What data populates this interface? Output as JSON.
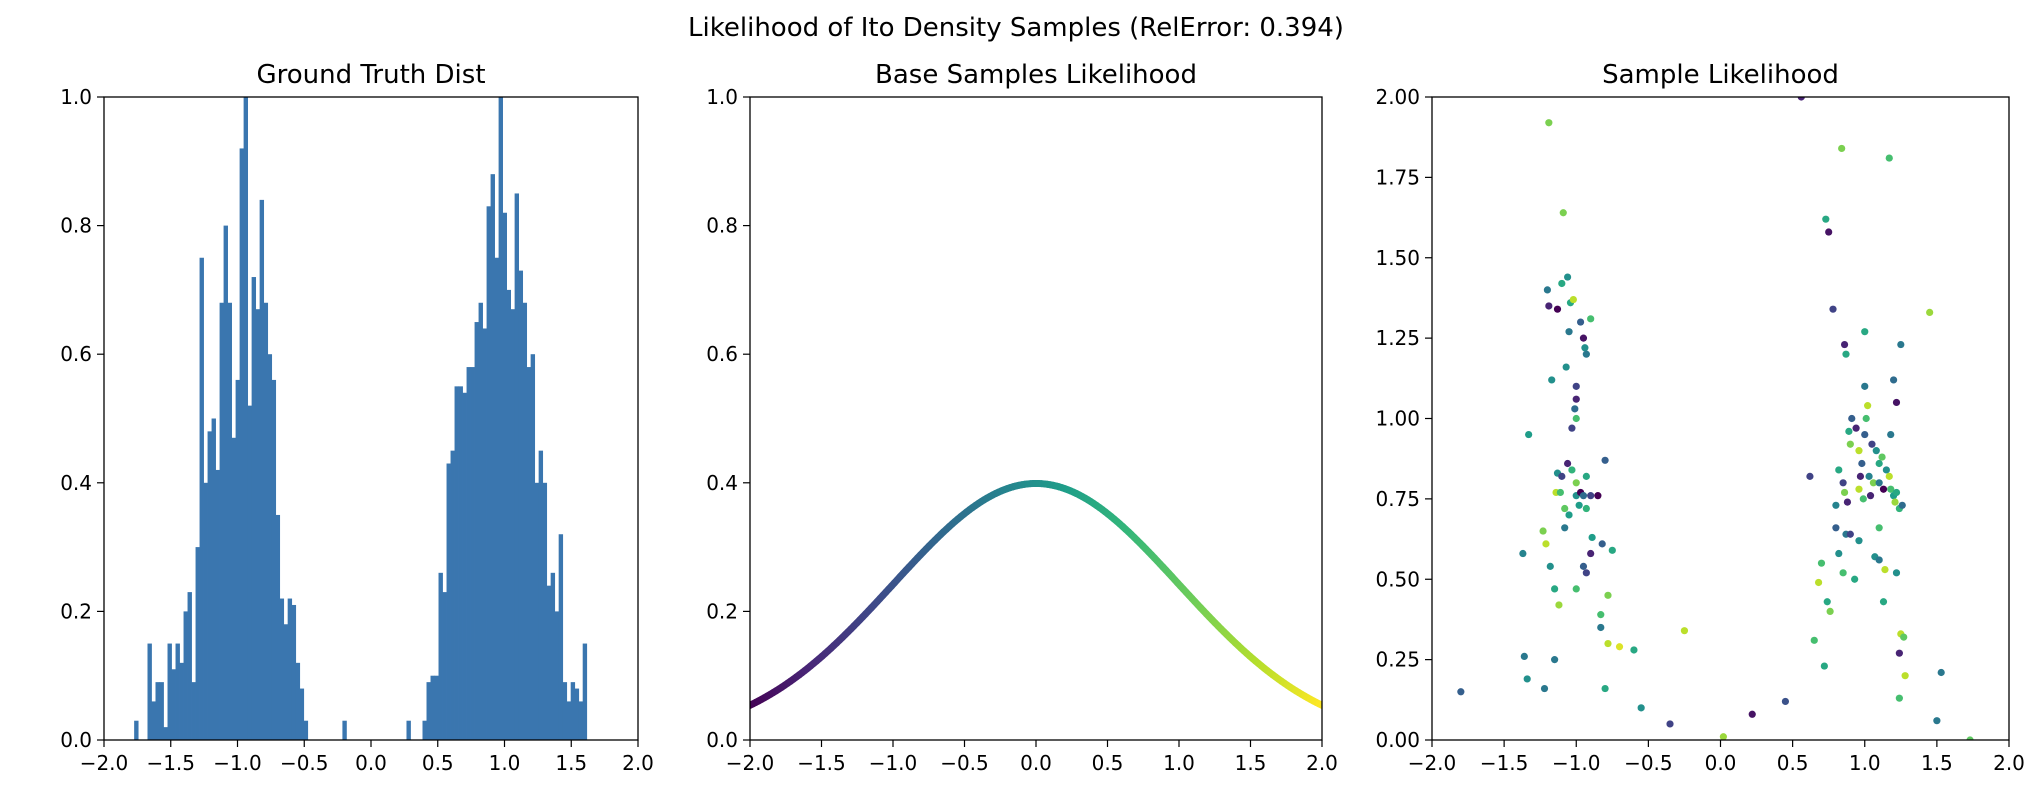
{
  "figure": {
    "suptitle": "Likelihood of Ito Density Samples (RelError: 0.394)"
  },
  "chart_data": [
    {
      "type": "bar",
      "title": "Ground Truth Dist",
      "xlabel": "",
      "ylabel": "",
      "xlim": [
        -2.0,
        2.0
      ],
      "ylim": [
        0.0,
        1.0
      ],
      "xticks": [
        "−2.0",
        "−1.5",
        "−1.0",
        "−0.5",
        "0.0",
        "0.5",
        "1.0",
        "1.5",
        "2.0"
      ],
      "yticks": [
        "0.0",
        "0.2",
        "0.4",
        "0.6",
        "0.8",
        "1.0"
      ],
      "grid": false,
      "color": "#3a76af",
      "bin_width": 0.0284,
      "bins": [
        [
          -1.76,
          0.03
        ],
        [
          -1.66,
          0.15
        ],
        [
          -1.63,
          0.06
        ],
        [
          -1.6,
          0.09
        ],
        [
          -1.57,
          0.09
        ],
        [
          -1.54,
          0.02
        ],
        [
          -1.51,
          0.15
        ],
        [
          -1.48,
          0.11
        ],
        [
          -1.45,
          0.15
        ],
        [
          -1.42,
          0.12
        ],
        [
          -1.39,
          0.2
        ],
        [
          -1.36,
          0.23
        ],
        [
          -1.33,
          0.09
        ],
        [
          -1.3,
          0.3
        ],
        [
          -1.27,
          0.75
        ],
        [
          -1.24,
          0.4
        ],
        [
          -1.21,
          0.48
        ],
        [
          -1.18,
          0.5
        ],
        [
          -1.15,
          0.42
        ],
        [
          -1.12,
          0.68
        ],
        [
          -1.09,
          0.8
        ],
        [
          -1.06,
          0.68
        ],
        [
          -1.03,
          0.47
        ],
        [
          -1.0,
          0.56
        ],
        [
          -0.97,
          0.92
        ],
        [
          -0.94,
          1.0
        ],
        [
          -0.91,
          0.52
        ],
        [
          -0.88,
          0.72
        ],
        [
          -0.85,
          0.67
        ],
        [
          -0.82,
          0.84
        ],
        [
          -0.79,
          0.68
        ],
        [
          -0.76,
          0.6
        ],
        [
          -0.73,
          0.56
        ],
        [
          -0.7,
          0.35
        ],
        [
          -0.67,
          0.22
        ],
        [
          -0.64,
          0.18
        ],
        [
          -0.61,
          0.22
        ],
        [
          -0.58,
          0.21
        ],
        [
          -0.55,
          0.12
        ],
        [
          -0.52,
          0.08
        ],
        [
          -0.49,
          0.03
        ],
        [
          -0.2,
          0.03
        ],
        [
          0.28,
          0.03
        ],
        [
          0.4,
          0.03
        ],
        [
          0.43,
          0.09
        ],
        [
          0.46,
          0.1
        ],
        [
          0.49,
          0.1
        ],
        [
          0.52,
          0.26
        ],
        [
          0.55,
          0.23
        ],
        [
          0.58,
          0.43
        ],
        [
          0.61,
          0.45
        ],
        [
          0.64,
          0.55
        ],
        [
          0.67,
          0.55
        ],
        [
          0.7,
          0.54
        ],
        [
          0.73,
          0.58
        ],
        [
          0.76,
          0.58
        ],
        [
          0.79,
          0.65
        ],
        [
          0.82,
          0.68
        ],
        [
          0.85,
          0.64
        ],
        [
          0.88,
          0.83
        ],
        [
          0.91,
          0.88
        ],
        [
          0.94,
          0.75
        ],
        [
          0.97,
          1.0
        ],
        [
          1.0,
          0.82
        ],
        [
          1.03,
          0.7
        ],
        [
          1.06,
          0.67
        ],
        [
          1.09,
          0.85
        ],
        [
          1.12,
          0.73
        ],
        [
          1.15,
          0.68
        ],
        [
          1.18,
          0.58
        ],
        [
          1.21,
          0.6
        ],
        [
          1.24,
          0.4
        ],
        [
          1.27,
          0.45
        ],
        [
          1.3,
          0.4
        ],
        [
          1.33,
          0.24
        ],
        [
          1.36,
          0.26
        ],
        [
          1.39,
          0.2
        ],
        [
          1.42,
          0.32
        ],
        [
          1.45,
          0.09
        ],
        [
          1.48,
          0.06
        ],
        [
          1.51,
          0.09
        ],
        [
          1.54,
          0.08
        ],
        [
          1.57,
          0.06
        ],
        [
          1.6,
          0.15
        ]
      ]
    },
    {
      "type": "line",
      "title": "Base Samples Likelihood",
      "xlabel": "",
      "ylabel": "",
      "xlim": [
        -2.0,
        2.0
      ],
      "ylim": [
        0.0,
        1.0
      ],
      "xticks": [
        "−2.0",
        "−1.5",
        "−1.0",
        "−0.5",
        "0.0",
        "0.5",
        "1.0",
        "1.5",
        "2.0"
      ],
      "yticks": [
        "0.0",
        "0.2",
        "0.4",
        "0.6",
        "0.8",
        "1.0"
      ],
      "grid": false,
      "curve": "standard normal pdf",
      "x": [
        -2.0,
        -1.75,
        -1.5,
        -1.25,
        -1.0,
        -0.75,
        -0.5,
        -0.25,
        0.0,
        0.25,
        0.5,
        0.75,
        1.0,
        1.25,
        1.5,
        1.75,
        2.0
      ],
      "y": [
        0.054,
        0.086,
        0.13,
        0.183,
        0.242,
        0.301,
        0.352,
        0.387,
        0.399,
        0.387,
        0.352,
        0.301,
        0.242,
        0.183,
        0.13,
        0.086,
        0.054
      ],
      "colormap": "viridis"
    },
    {
      "type": "scatter",
      "title": "Sample Likelihood",
      "xlabel": "",
      "ylabel": "",
      "xlim": [
        -2.0,
        2.0
      ],
      "ylim": [
        0.0,
        2.0
      ],
      "xticks": [
        "−2.0",
        "−1.5",
        "−1.0",
        "−0.5",
        "0.0",
        "0.5",
        "1.0",
        "1.5",
        "2.0"
      ],
      "yticks": [
        "0.00",
        "0.25",
        "0.50",
        "0.75",
        "1.00",
        "1.25",
        "1.50",
        "1.75",
        "2.00"
      ],
      "grid": false,
      "colormap": "viridis",
      "points": [
        [
          -1.8,
          0.15,
          0.3
        ],
        [
          -1.36,
          0.26,
          0.4
        ],
        [
          -1.34,
          0.19,
          0.5
        ],
        [
          -1.37,
          0.58,
          0.45
        ],
        [
          -1.33,
          0.95,
          0.55
        ],
        [
          -1.19,
          1.92,
          0.8
        ],
        [
          -1.2,
          1.4,
          0.4
        ],
        [
          -1.17,
          1.12,
          0.5
        ],
        [
          -1.19,
          1.35,
          0.1
        ],
        [
          -1.13,
          1.34,
          0.0
        ],
        [
          -1.1,
          1.42,
          0.6
        ],
        [
          -1.06,
          1.44,
          0.5
        ],
        [
          -1.04,
          1.36,
          0.6
        ],
        [
          -1.02,
          1.37,
          0.9
        ],
        [
          -1.05,
          1.27,
          0.4
        ],
        [
          -0.97,
          1.3,
          0.3
        ],
        [
          -0.9,
          1.31,
          0.7
        ],
        [
          -0.95,
          1.25,
          0.05
        ],
        [
          -0.94,
          1.22,
          0.5
        ],
        [
          -0.93,
          1.2,
          0.4
        ],
        [
          -1.0,
          1.1,
          0.2
        ],
        [
          -1.0,
          1.06,
          0.1
        ],
        [
          -1.01,
          1.03,
          0.35
        ],
        [
          -1.0,
          1.0,
          0.7
        ],
        [
          -1.03,
          0.97,
          0.2
        ],
        [
          -1.07,
          1.16,
          0.5
        ],
        [
          -1.09,
          1.64,
          0.8
        ],
        [
          -1.13,
          0.83,
          0.5
        ],
        [
          -1.1,
          0.82,
          0.2
        ],
        [
          -1.06,
          0.86,
          0.1
        ],
        [
          -1.03,
          0.84,
          0.65
        ],
        [
          -1.14,
          0.77,
          0.9
        ],
        [
          -1.11,
          0.77,
          0.7
        ],
        [
          -1.08,
          0.72,
          0.75
        ],
        [
          -1.05,
          0.7,
          0.55
        ],
        [
          -1.08,
          0.66,
          0.4
        ],
        [
          -1.0,
          0.8,
          0.8
        ],
        [
          -1.0,
          0.76,
          0.5
        ],
        [
          -0.97,
          0.77,
          0.0
        ],
        [
          -0.95,
          0.76,
          0.35
        ],
        [
          -0.98,
          0.73,
          0.55
        ],
        [
          -0.93,
          0.72,
          0.65
        ],
        [
          -0.9,
          0.76,
          0.2
        ],
        [
          -0.85,
          0.76,
          0.0
        ],
        [
          -0.8,
          0.87,
          0.3
        ],
        [
          -0.93,
          0.82,
          0.6
        ],
        [
          -1.23,
          0.65,
          0.8
        ],
        [
          -1.21,
          0.61,
          0.9
        ],
        [
          -1.18,
          0.54,
          0.5
        ],
        [
          -1.15,
          0.47,
          0.6
        ],
        [
          -1.12,
          0.42,
          0.85
        ],
        [
          -1.22,
          0.16,
          0.4
        ],
        [
          -1.15,
          0.25,
          0.4
        ],
        [
          -1.0,
          0.47,
          0.7
        ],
        [
          -0.95,
          0.54,
          0.3
        ],
        [
          -0.93,
          0.52,
          0.2
        ],
        [
          -0.9,
          0.58,
          0.1
        ],
        [
          -0.89,
          0.63,
          0.55
        ],
        [
          -0.82,
          0.61,
          0.3
        ],
        [
          -0.75,
          0.59,
          0.6
        ],
        [
          -0.78,
          0.45,
          0.8
        ],
        [
          -0.83,
          0.39,
          0.7
        ],
        [
          -0.83,
          0.35,
          0.4
        ],
        [
          -0.78,
          0.3,
          0.9
        ],
        [
          -0.8,
          0.16,
          0.6
        ],
        [
          -0.7,
          0.29,
          0.95
        ],
        [
          -0.6,
          0.28,
          0.6
        ],
        [
          -0.55,
          0.1,
          0.5
        ],
        [
          -0.35,
          0.05,
          0.2
        ],
        [
          -0.25,
          0.34,
          0.9
        ],
        [
          0.02,
          0.01,
          0.85
        ],
        [
          0.22,
          0.08,
          0.05
        ],
        [
          0.45,
          0.12,
          0.25
        ],
        [
          0.56,
          2.0,
          0.1
        ],
        [
          0.62,
          0.82,
          0.2
        ],
        [
          0.65,
          0.31,
          0.7
        ],
        [
          0.68,
          0.49,
          0.9
        ],
        [
          0.7,
          0.55,
          0.7
        ],
        [
          0.72,
          0.23,
          0.6
        ],
        [
          0.73,
          1.62,
          0.6
        ],
        [
          0.75,
          1.58,
          0.05
        ],
        [
          0.78,
          1.34,
          0.2
        ],
        [
          0.74,
          0.43,
          0.6
        ],
        [
          0.76,
          0.4,
          0.8
        ],
        [
          0.8,
          0.66,
          0.3
        ],
        [
          0.8,
          0.73,
          0.45
        ],
        [
          0.82,
          0.84,
          0.6
        ],
        [
          0.85,
          0.8,
          0.2
        ],
        [
          0.86,
          0.77,
          0.8
        ],
        [
          0.88,
          0.74,
          0.1
        ],
        [
          0.82,
          0.58,
          0.5
        ],
        [
          0.85,
          0.52,
          0.7
        ],
        [
          0.87,
          0.64,
          0.4
        ],
        [
          0.9,
          0.64,
          0.2
        ],
        [
          0.84,
          1.84,
          0.8
        ],
        [
          0.86,
          1.23,
          0.1
        ],
        [
          0.87,
          1.2,
          0.6
        ],
        [
          0.91,
          1.0,
          0.3
        ],
        [
          0.89,
          0.96,
          0.6
        ],
        [
          0.94,
          0.97,
          0.1
        ],
        [
          0.9,
          0.92,
          0.8
        ],
        [
          0.96,
          0.9,
          0.9
        ],
        [
          0.98,
          0.86,
          0.3
        ],
        [
          0.97,
          0.82,
          0.1
        ],
        [
          0.96,
          0.78,
          0.9
        ],
        [
          0.99,
          0.75,
          0.7
        ],
        [
          1.0,
          0.95,
          0.3
        ],
        [
          1.01,
          1.0,
          0.7
        ],
        [
          1.02,
          1.04,
          0.9
        ],
        [
          1.0,
          1.1,
          0.4
        ],
        [
          1.0,
          1.27,
          0.6
        ],
        [
          1.03,
          0.82,
          0.45
        ],
        [
          1.06,
          0.8,
          0.8
        ],
        [
          1.04,
          0.76,
          0.1
        ],
        [
          1.05,
          0.92,
          0.2
        ],
        [
          1.08,
          0.9,
          0.5
        ],
        [
          1.1,
          0.86,
          0.6
        ],
        [
          1.12,
          0.88,
          0.75
        ],
        [
          1.1,
          0.8,
          0.4
        ],
        [
          1.13,
          0.78,
          0.0
        ],
        [
          1.15,
          0.84,
          0.5
        ],
        [
          1.17,
          0.82,
          0.9
        ],
        [
          1.18,
          0.78,
          0.7
        ],
        [
          1.2,
          0.76,
          0.55
        ],
        [
          1.21,
          0.74,
          0.85
        ],
        [
          1.24,
          0.72,
          0.65
        ],
        [
          1.26,
          0.73,
          0.35
        ],
        [
          1.22,
          0.77,
          0.6
        ],
        [
          1.18,
          0.95,
          0.4
        ],
        [
          1.2,
          1.12,
          0.35
        ],
        [
          1.22,
          1.05,
          0.05
        ],
        [
          1.25,
          1.23,
          0.4
        ],
        [
          1.17,
          1.81,
          0.7
        ],
        [
          1.45,
          1.33,
          0.85
        ],
        [
          1.1,
          0.66,
          0.7
        ],
        [
          1.07,
          0.57,
          0.5
        ],
        [
          1.1,
          0.56,
          0.4
        ],
        [
          1.14,
          0.53,
          0.9
        ],
        [
          1.13,
          0.43,
          0.6
        ],
        [
          1.22,
          0.52,
          0.5
        ],
        [
          1.25,
          0.33,
          0.9
        ],
        [
          1.27,
          0.32,
          0.75
        ],
        [
          1.24,
          0.27,
          0.1
        ],
        [
          1.28,
          0.2,
          0.9
        ],
        [
          1.24,
          0.13,
          0.7
        ],
        [
          1.53,
          0.21,
          0.4
        ],
        [
          1.5,
          0.06,
          0.4
        ],
        [
          1.73,
          0.0,
          0.75
        ],
        [
          0.96,
          0.62,
          0.5
        ],
        [
          0.93,
          0.5,
          0.6
        ]
      ]
    }
  ]
}
